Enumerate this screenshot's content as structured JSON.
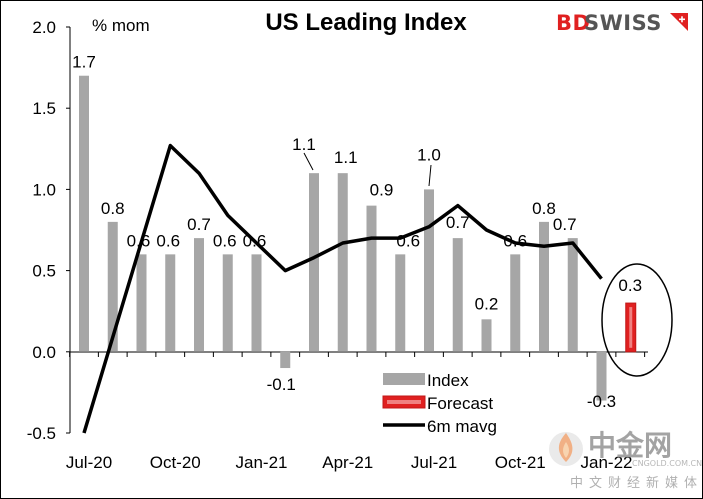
{
  "chart_data": {
    "type": "bar",
    "title": "US Leading Index",
    "ylabel": "% mom",
    "ylim": [
      -0.5,
      2.0
    ],
    "yticks": [
      "2.0",
      "1.5",
      "1.0",
      "0.5",
      "0.0",
      "-0.5"
    ],
    "x_tick_labels": [
      "Jul-20",
      "Oct-20",
      "Jan-21",
      "Apr-21",
      "Jul-21",
      "Oct-21",
      "Jan-22"
    ],
    "categories": [
      "Jul-20",
      "Aug-20",
      "Sep-20",
      "Oct-20",
      "Nov-20",
      "Dec-20",
      "Jan-21",
      "Feb-21",
      "Mar-21",
      "Apr-21",
      "May-21",
      "Jun-21",
      "Jul-21",
      "Aug-21",
      "Sep-21",
      "Oct-21",
      "Nov-21",
      "Dec-21",
      "Jan-22",
      "Feb-22"
    ],
    "series": [
      {
        "name": "Index",
        "color": "#a6a6a6",
        "values": [
          1.7,
          0.8,
          0.6,
          0.6,
          0.7,
          0.6,
          0.6,
          -0.1,
          1.1,
          1.1,
          0.9,
          0.6,
          1.0,
          0.7,
          0.2,
          0.6,
          0.8,
          0.7,
          -0.3,
          null
        ]
      },
      {
        "name": "Forecast",
        "color": "#e02020",
        "values": [
          null,
          null,
          null,
          null,
          null,
          null,
          null,
          null,
          null,
          null,
          null,
          null,
          null,
          null,
          null,
          null,
          null,
          null,
          null,
          0.3
        ]
      },
      {
        "name": "6m mavg",
        "color": "#000000",
        "type": "line",
        "values": [
          -0.5,
          null,
          null,
          1.27,
          1.1,
          0.84,
          0.67,
          0.5,
          0.58,
          0.67,
          0.7,
          0.7,
          0.77,
          0.9,
          0.75,
          0.67,
          0.65,
          0.67,
          0.45,
          null
        ]
      }
    ],
    "data_labels": [
      "1.7",
      "0.8",
      "0.6",
      "0.6",
      "0.7",
      "0.6",
      "0.6",
      "-0.1",
      "1.1",
      "1.1",
      "0.9",
      "0.6",
      "1.0",
      "0.7",
      "0.2",
      "0.6",
      "0.8",
      "0.7",
      "-0.3",
      "0.3"
    ],
    "legend_position": "bottom-center",
    "grid": false
  },
  "brand": {
    "bd": "BD",
    "swiss": "SWISS",
    "bd_color": "#e02020",
    "swiss_color": "#555555"
  },
  "watermark": {
    "text": "中金网",
    "sub": "中文财经新媒体",
    "url": "CNGOLD.COM.CN"
  }
}
